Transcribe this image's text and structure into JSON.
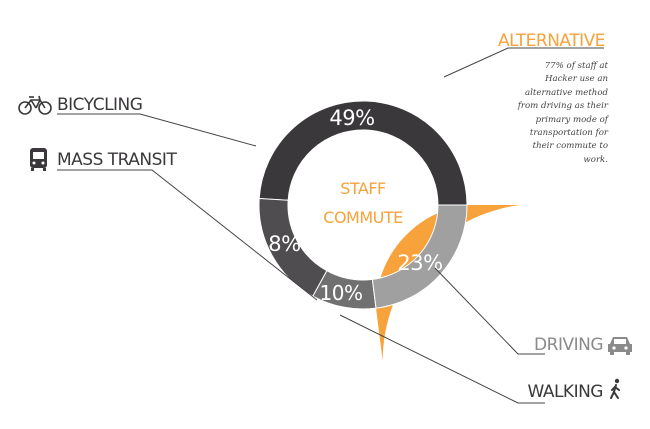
{
  "chart_data": {
    "type": "pie",
    "title": "STAFF COMMUTE",
    "title_lines": [
      "STAFF",
      "COMMUTE"
    ],
    "outer_ring": {
      "label": "ALTERNATIVE",
      "value": 77,
      "value_label": "77%",
      "color": "#f7a23b",
      "description": "77% of staff at Hacker use an alternative method from driving as their primary mode of transportation for their commute to work."
    },
    "inner_ring": {
      "series": [
        {
          "name": "BICYCLING",
          "value": 49,
          "value_label": "49%",
          "color": "#3a383a",
          "icon": "bicycle-icon"
        },
        {
          "name": "MASS TRANSIT",
          "value": 18,
          "value_label": "18%",
          "color": "#4f4d4f",
          "icon": "bus-icon"
        },
        {
          "name": "WALKING",
          "value": 10,
          "value_label": "10%",
          "color": "#707070",
          "icon": "walking-person-icon"
        },
        {
          "name": "DRIVING",
          "value": 23,
          "value_label": "23%",
          "color": "#a0a0a0",
          "icon": "car-icon"
        }
      ]
    },
    "colors": {
      "alternative_accent": "#f7a23b",
      "dark_label": "#3a383a",
      "gray_label": "#8a8a8a"
    }
  }
}
